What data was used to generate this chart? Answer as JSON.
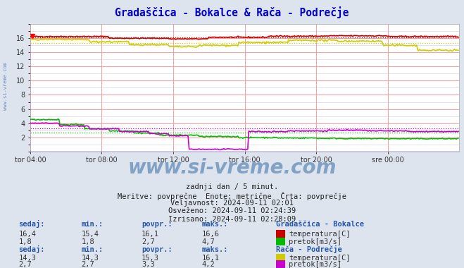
{
  "title": "Gradaščica - Bokalce & Rača - Podrečje",
  "title_color": "#0000cc",
  "bg_color": "#dde4ee",
  "plot_bg_color": "#ffffff",
  "grid_color_major": "#ff9999",
  "grid_color_minor": "#ccccdd",
  "xlabel_ticks": [
    "tor 04:00",
    "tor 08:00",
    "tor 12:00",
    "tor 16:00",
    "tor 20:00",
    "sre 00:00"
  ],
  "tick_positions": [
    0,
    72,
    144,
    216,
    288,
    360
  ],
  "total_points": 432,
  "ylim": [
    0,
    18
  ],
  "ytick_vals": [
    2,
    4,
    6,
    8,
    10,
    12,
    14,
    16
  ],
  "line_gradascica_temp_color": "#cc0000",
  "line_gradascica_flow_color": "#00bb00",
  "line_raca_temp_color": "#cccc00",
  "line_raca_flow_color": "#cc00cc",
  "avg_gradascica_temp": 16.1,
  "avg_gradascica_flow": 2.7,
  "avg_raca_temp": 15.3,
  "avg_raca_flow": 3.3,
  "watermark": "www.si-vreme.com",
  "watermark_color": "#4477aa",
  "sub_text1": "zadnji dan / 5 minut.",
  "sub_text2": "Meritve: povprečne  Enote: metrične  Črta: povprečje",
  "sub_text3": "Veljavnost: 2024-09-11 02:01",
  "sub_text4": "Osveženo: 2024-09-11 02:24:39",
  "sub_text5": "Izrisano: 2024-09-11 02:28:09",
  "table_color": "#2255aa",
  "sidebar_text": "www.si-vreme.com",
  "sidebar_color": "#6688bb",
  "sedaj_header": "sedaj:",
  "min_header": "min.:",
  "povpr_header": "povpr.:",
  "maks_header": "maks.:",
  "station1_name": "Gradaščica - Bokalce",
  "station2_name": "Rača - Podrečje",
  "s1_temp_sedaj": "16,4",
  "s1_temp_min": "15,4",
  "s1_temp_povpr": "16,1",
  "s1_temp_maks": "16,6",
  "s1_flow_sedaj": "1,8",
  "s1_flow_min": "1,8",
  "s1_flow_povpr": "2,7",
  "s1_flow_maks": "4,7",
  "s2_temp_sedaj": "14,3",
  "s2_temp_min": "14,3",
  "s2_temp_povpr": "15,3",
  "s2_temp_maks": "16,1",
  "s2_flow_sedaj": "2,7",
  "s2_flow_min": "2,7",
  "s2_flow_povpr": "3,3",
  "s2_flow_maks": "4,2",
  "temp_label": "temperatura[C]",
  "flow_label": "pretok[m3/s]"
}
